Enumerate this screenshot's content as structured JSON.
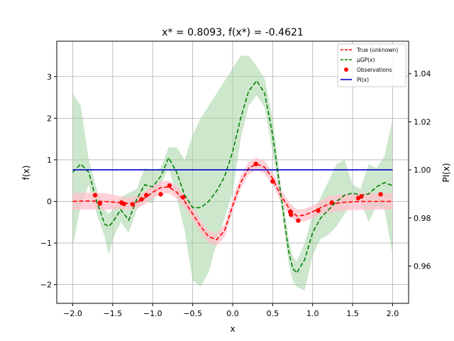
{
  "chart_data": {
    "type": "line",
    "title": "x* = 0.8093, f(x*) = -0.4621",
    "xlabel": "x",
    "ylabel": "f(x)",
    "y2label": "PI(x)",
    "xlim": [
      -2.2,
      2.2
    ],
    "ylim": [
      -2.45,
      3.85
    ],
    "y2lim": [
      0.9445,
      1.0535
    ],
    "grid": true,
    "legend_position": "top-right",
    "x_ticks": [
      -2.0,
      -1.5,
      -1.0,
      -0.5,
      0.0,
      0.5,
      1.0,
      1.5,
      2.0
    ],
    "x_tick_labels": [
      "−2.0",
      "−1.5",
      "−1.0",
      "−0.5",
      "0.0",
      "0.5",
      "1.0",
      "1.5",
      "2.0"
    ],
    "y_ticks": [
      -2,
      -1,
      0,
      1,
      2,
      3
    ],
    "y_tick_labels": [
      "−2",
      "−1",
      "0",
      "1",
      "2",
      "3"
    ],
    "y2_ticks": [
      0.96,
      0.98,
      1.0,
      1.02,
      1.04
    ],
    "y2_tick_labels": [
      "0.96",
      "0.98",
      "1.00",
      "1.02",
      "1.04"
    ],
    "colors": {
      "true": "#ff0000",
      "true_band": "#ffc0cb",
      "gp": "#008000",
      "gp_band": "#a4d3a4",
      "observations": "#ff0000",
      "pi": "#0000cc"
    },
    "series": [
      {
        "name": "True (unknown)",
        "style": "dashed",
        "x": [
          -2.0,
          -1.8,
          -1.6,
          -1.4,
          -1.3,
          -1.2,
          -1.1,
          -1.0,
          -0.9,
          -0.8,
          -0.7,
          -0.6,
          -0.5,
          -0.4,
          -0.3,
          -0.2,
          -0.1,
          0.0,
          0.1,
          0.2,
          0.3,
          0.4,
          0.5,
          0.6,
          0.7,
          0.8,
          0.9,
          1.0,
          1.1,
          1.2,
          1.4,
          1.6,
          1.8,
          2.0
        ],
        "y": [
          0.0,
          0.01,
          0.0,
          -0.03,
          -0.05,
          -0.02,
          0.08,
          0.22,
          0.33,
          0.35,
          0.22,
          0.0,
          -0.3,
          -0.6,
          -0.85,
          -0.92,
          -0.7,
          -0.1,
          0.45,
          0.8,
          0.9,
          0.82,
          0.55,
          0.15,
          -0.15,
          -0.35,
          -0.33,
          -0.25,
          -0.15,
          -0.07,
          -0.02,
          0.0,
          0.0,
          0.0
        ]
      },
      {
        "name": "μGP(x)",
        "style": "dashed",
        "x": [
          -2.0,
          -1.9,
          -1.8,
          -1.7,
          -1.6,
          -1.55,
          -1.5,
          -1.4,
          -1.3,
          -1.2,
          -1.1,
          -1.0,
          -0.9,
          -0.8,
          -0.7,
          -0.6,
          -0.5,
          -0.4,
          -0.3,
          -0.2,
          -0.1,
          0.0,
          0.1,
          0.2,
          0.3,
          0.4,
          0.5,
          0.6,
          0.7,
          0.75,
          0.8,
          0.9,
          1.0,
          1.1,
          1.2,
          1.3,
          1.4,
          1.5,
          1.6,
          1.7,
          1.8,
          1.9,
          2.0
        ],
        "y": [
          0.7,
          0.9,
          0.7,
          0.0,
          -0.55,
          -0.6,
          -0.5,
          -0.2,
          -0.45,
          0.05,
          0.4,
          0.35,
          0.6,
          1.05,
          0.7,
          0.15,
          -0.15,
          -0.15,
          0.0,
          0.25,
          0.6,
          1.2,
          2.0,
          2.65,
          2.9,
          2.6,
          1.6,
          0.2,
          -1.2,
          -1.6,
          -1.72,
          -1.4,
          -0.75,
          -0.4,
          -0.2,
          0.0,
          0.15,
          0.2,
          0.15,
          0.18,
          0.35,
          0.45,
          0.38
        ]
      },
      {
        "name": "Observations",
        "style": "markers",
        "x": [
          -1.72,
          -1.66,
          -1.39,
          -1.36,
          -1.25,
          -1.14,
          -1.08,
          -0.9,
          -0.79,
          -0.62,
          0.29,
          0.5,
          0.72,
          0.73,
          0.82,
          1.07,
          1.24,
          1.57,
          1.61,
          1.85
        ],
        "y": [
          0.15,
          -0.05,
          -0.03,
          -0.06,
          -0.07,
          0.05,
          0.15,
          0.17,
          0.38,
          0.1,
          0.9,
          0.48,
          -0.25,
          -0.32,
          -0.46,
          -0.22,
          -0.03,
          0.08,
          0.12,
          0.17
        ]
      },
      {
        "name": "PI(x)",
        "style": "solid",
        "axis": "right",
        "x": [
          -2.0,
          2.0
        ],
        "y": [
          1.0,
          1.0
        ]
      }
    ],
    "bands": [
      {
        "of": "True (unknown)",
        "x": [
          -2.0,
          -1.8,
          -1.6,
          -1.4,
          -1.3,
          -1.2,
          -1.1,
          -1.0,
          -0.9,
          -0.8,
          -0.7,
          -0.6,
          -0.5,
          -0.4,
          -0.3,
          -0.2,
          -0.1,
          0.0,
          0.1,
          0.2,
          0.3,
          0.4,
          0.5,
          0.6,
          0.7,
          0.8,
          0.9,
          1.0,
          1.1,
          1.2,
          1.4,
          1.6,
          1.8,
          2.0
        ],
        "upper": [
          0.2,
          0.21,
          0.2,
          0.12,
          0.1,
          0.13,
          0.23,
          0.37,
          0.48,
          0.5,
          0.37,
          0.15,
          -0.15,
          -0.45,
          -0.7,
          -0.77,
          -0.55,
          0.05,
          0.6,
          0.95,
          1.05,
          0.97,
          0.7,
          0.3,
          0.0,
          -0.2,
          -0.18,
          -0.1,
          0.0,
          0.13,
          0.18,
          0.2,
          0.2,
          0.2
        ],
        "lower": [
          -0.2,
          -0.19,
          -0.2,
          -0.18,
          -0.2,
          -0.17,
          -0.07,
          0.07,
          0.18,
          0.2,
          0.07,
          -0.15,
          -0.45,
          -0.75,
          -1.0,
          -1.07,
          -0.85,
          -0.25,
          0.3,
          0.65,
          0.75,
          0.67,
          0.4,
          0.0,
          -0.3,
          -0.5,
          -0.48,
          -0.4,
          -0.3,
          -0.27,
          -0.22,
          -0.2,
          -0.2,
          -0.2
        ]
      },
      {
        "of": "μGP(x)",
        "x": [
          -2.0,
          -1.9,
          -1.8,
          -1.7,
          -1.6,
          -1.55,
          -1.5,
          -1.4,
          -1.3,
          -1.2,
          -1.1,
          -1.0,
          -0.9,
          -0.8,
          -0.7,
          -0.6,
          -0.5,
          -0.4,
          -0.3,
          -0.2,
          -0.1,
          0.0,
          0.1,
          0.2,
          0.3,
          0.4,
          0.5,
          0.6,
          0.7,
          0.75,
          0.8,
          0.9,
          1.0,
          1.1,
          1.2,
          1.3,
          1.4,
          1.5,
          1.6,
          1.7,
          1.8,
          1.9,
          2.0
        ],
        "upper": [
          2.6,
          2.3,
          1.0,
          0.3,
          -0.2,
          -0.3,
          -0.2,
          0.1,
          0.2,
          0.3,
          0.8,
          0.75,
          0.8,
          1.3,
          1.3,
          1.0,
          1.6,
          2.0,
          2.3,
          2.6,
          2.9,
          3.2,
          3.5,
          3.5,
          3.25,
          2.95,
          2.0,
          0.4,
          -0.9,
          -1.3,
          -1.45,
          -1.0,
          -0.3,
          0.1,
          0.5,
          0.9,
          1.0,
          0.4,
          0.3,
          0.9,
          0.8,
          1.1,
          2.0
        ],
        "lower": [
          -1.1,
          -0.1,
          0.4,
          -0.3,
          -0.85,
          -1.3,
          -0.9,
          -0.5,
          -0.75,
          -0.2,
          0.0,
          -0.05,
          0.4,
          0.8,
          0.1,
          -0.7,
          -1.9,
          -2.05,
          -1.7,
          -1.0,
          -0.4,
          0.2,
          1.5,
          2.3,
          2.55,
          2.25,
          1.2,
          0.0,
          -1.5,
          -1.9,
          -2.05,
          -2.15,
          -1.3,
          -0.9,
          -0.8,
          -0.6,
          -0.3,
          0.0,
          0.0,
          -0.5,
          -0.1,
          -0.2,
          -1.3
        ]
      }
    ]
  }
}
